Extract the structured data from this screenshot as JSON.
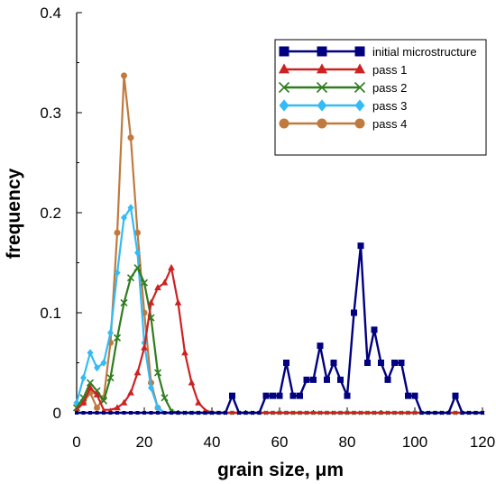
{
  "chart_data": {
    "type": "line",
    "title": "",
    "xlabel": "grain size, μm",
    "ylabel": "frequency",
    "xlim": [
      0,
      120
    ],
    "ylim": [
      0,
      0.4
    ],
    "xticks": [
      "0",
      "20",
      "40",
      "60",
      "80",
      "100",
      "120"
    ],
    "yticks": [
      "0",
      "0.1",
      "0.2",
      "0.3",
      "0.4"
    ],
    "grid": false,
    "legend_position": "top-right",
    "series": [
      {
        "name": "initial microstructure",
        "color": "#000080",
        "marker": "square",
        "x": [
          0,
          2,
          4,
          6,
          8,
          10,
          12,
          14,
          16,
          18,
          20,
          22,
          24,
          26,
          28,
          30,
          32,
          34,
          36,
          38,
          40,
          42,
          44,
          46,
          48,
          50,
          52,
          54,
          56,
          58,
          60,
          62,
          64,
          66,
          68,
          70,
          72,
          74,
          76,
          78,
          80,
          82,
          84,
          86,
          88,
          90,
          92,
          94,
          96,
          98,
          100,
          102,
          104,
          106,
          108,
          110,
          112,
          114,
          116,
          118,
          120
        ],
        "values": [
          0,
          0,
          0,
          0,
          0,
          0,
          0,
          0,
          0,
          0,
          0,
          0,
          0,
          0,
          0,
          0,
          0,
          0,
          0,
          0,
          0,
          0,
          0,
          0.017,
          0,
          0,
          0,
          0,
          0.017,
          0.017,
          0.017,
          0.05,
          0.017,
          0.017,
          0.033,
          0.033,
          0.067,
          0.033,
          0.05,
          0.033,
          0.017,
          0.1,
          0.167,
          0.05,
          0.083,
          0.05,
          0.033,
          0.05,
          0.05,
          0.017,
          0.017,
          0,
          0,
          0,
          0,
          0,
          0.017,
          0,
          0,
          0,
          0
        ]
      },
      {
        "name": "pass 1",
        "color": "#cc2222",
        "marker": "triangle",
        "x": [
          0,
          2,
          4,
          6,
          8,
          10,
          12,
          14,
          16,
          18,
          20,
          22,
          24,
          26,
          28,
          30,
          32,
          34,
          36,
          38,
          40,
          42,
          44,
          46,
          48,
          50,
          52,
          54,
          56,
          58,
          60,
          62,
          64,
          66,
          68,
          70,
          72,
          74,
          76,
          78,
          80,
          82,
          84,
          86,
          88,
          90,
          92,
          94,
          96,
          98,
          100,
          102,
          104,
          106,
          108,
          110,
          112,
          114,
          116,
          118,
          120
        ],
        "values": [
          0.003,
          0.01,
          0.025,
          0.018,
          0.003,
          0.003,
          0.005,
          0.01,
          0.02,
          0.04,
          0.065,
          0.11,
          0.125,
          0.13,
          0.145,
          0.11,
          0.06,
          0.03,
          0.01,
          0.003,
          0,
          0,
          0,
          0,
          0,
          0,
          0,
          0,
          0,
          0,
          0,
          0,
          0,
          0,
          0,
          0,
          0,
          0,
          0,
          0,
          0,
          0,
          0,
          0,
          0,
          0,
          0,
          0,
          0,
          0,
          0,
          0,
          0,
          0,
          0,
          0,
          0,
          0,
          0,
          0,
          0
        ]
      },
      {
        "name": "pass 2",
        "color": "#2e7d1e",
        "marker": "x",
        "x": [
          0,
          2,
          4,
          6,
          8,
          10,
          12,
          14,
          16,
          18,
          20,
          22,
          24,
          26,
          28,
          30,
          32,
          34,
          36,
          38,
          40,
          42,
          44,
          46,
          48,
          50,
          52,
          54,
          56,
          58,
          60,
          62,
          64,
          66,
          68,
          70,
          72,
          74,
          76,
          78,
          80,
          82,
          84,
          86,
          88,
          90,
          92,
          94,
          96,
          98,
          100,
          102,
          104,
          106,
          108,
          110,
          112,
          114,
          116,
          118,
          120
        ],
        "values": [
          0.005,
          0.015,
          0.03,
          0.022,
          0.012,
          0.035,
          0.075,
          0.11,
          0.135,
          0.145,
          0.13,
          0.095,
          0.04,
          0.015,
          0.002,
          0,
          0,
          0,
          0,
          0,
          0,
          0,
          0,
          0,
          0,
          0,
          0,
          0,
          0,
          0,
          0,
          0,
          0,
          0,
          0,
          0,
          0,
          0,
          0,
          0,
          0,
          0,
          0,
          0,
          0,
          0,
          0,
          0,
          0,
          0,
          0,
          0,
          0,
          0,
          0,
          0,
          0,
          0,
          0,
          0,
          0
        ]
      },
      {
        "name": "pass 3",
        "color": "#33bbf5",
        "marker": "diamond",
        "x": [
          0,
          2,
          4,
          6,
          8,
          10,
          12,
          14,
          16,
          18,
          20,
          22,
          24,
          26,
          28,
          30,
          32,
          34,
          36,
          38,
          40,
          42,
          44,
          46,
          48,
          50,
          52,
          54,
          56,
          58,
          60,
          62,
          64,
          66,
          68,
          70,
          72,
          74,
          76,
          78,
          80,
          82,
          84,
          86,
          88,
          90,
          92,
          94,
          96,
          98,
          100,
          102,
          104,
          106,
          108,
          110,
          112,
          114,
          116,
          118,
          120
        ],
        "values": [
          0.01,
          0.035,
          0.06,
          0.045,
          0.05,
          0.08,
          0.14,
          0.195,
          0.205,
          0.16,
          0.07,
          0.025,
          0.005,
          0,
          0,
          0,
          0,
          0,
          0,
          0,
          0,
          0,
          0,
          0,
          0,
          0,
          0,
          0,
          0,
          0,
          0,
          0,
          0,
          0,
          0,
          0,
          0,
          0,
          0,
          0,
          0,
          0,
          0,
          0,
          0,
          0,
          0,
          0,
          0,
          0,
          0,
          0,
          0,
          0,
          0,
          0,
          0,
          0,
          0,
          0,
          0
        ]
      },
      {
        "name": "pass 4",
        "color": "#c07a3e",
        "marker": "circle",
        "x": [
          0,
          2,
          4,
          6,
          8,
          10,
          12,
          14,
          16,
          18,
          20,
          22,
          24,
          26,
          28,
          30,
          32,
          34,
          36,
          38,
          40,
          42,
          44,
          46,
          48,
          50,
          52,
          54,
          56,
          58,
          60,
          62,
          64,
          66,
          68,
          70,
          72,
          74,
          76,
          78,
          80,
          82,
          84,
          86,
          88,
          90,
          92,
          94,
          96,
          98,
          100,
          102,
          104,
          106,
          108,
          110,
          112,
          114,
          116,
          118,
          120
        ],
        "values": [
          0.003,
          0.01,
          0.02,
          0.005,
          0.015,
          0.07,
          0.18,
          0.337,
          0.275,
          0.18,
          0.1,
          0.03,
          0.005,
          0,
          0,
          0,
          0,
          0,
          0,
          0,
          0,
          0,
          0,
          0,
          0,
          0,
          0,
          0,
          0,
          0,
          0,
          0,
          0,
          0,
          0,
          0,
          0,
          0,
          0,
          0,
          0,
          0,
          0,
          0,
          0,
          0,
          0,
          0,
          0,
          0,
          0,
          0,
          0,
          0,
          0,
          0,
          0,
          0,
          0,
          0,
          0
        ]
      }
    ]
  }
}
